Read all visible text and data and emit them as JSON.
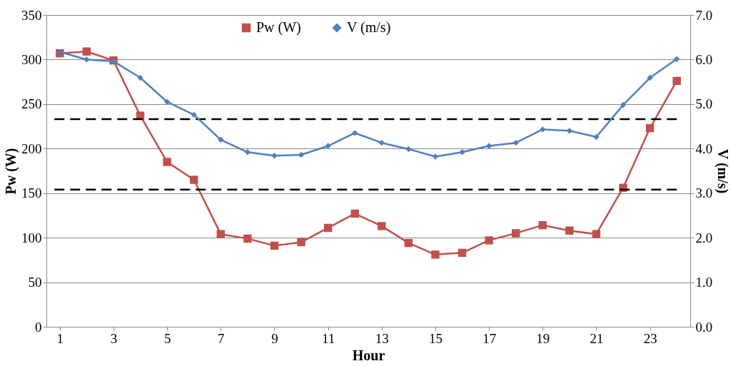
{
  "chart_data": {
    "type": "line",
    "xlabel": "Hour",
    "ylabel": "Pw (W)",
    "y2label": "V (m/s)",
    "x": [
      1,
      2,
      3,
      4,
      5,
      6,
      7,
      8,
      9,
      10,
      11,
      12,
      13,
      14,
      15,
      16,
      17,
      18,
      19,
      20,
      21,
      22,
      23,
      24
    ],
    "series": [
      {
        "name": "Pw (W)",
        "color": "#c0504d",
        "marker": "square",
        "values": [
          307,
          309,
          299,
          237,
          185,
          165,
          104,
          99,
          91,
          95,
          111,
          127,
          113,
          94,
          81,
          83,
          97,
          105,
          114,
          108,
          104,
          156,
          223,
          276
        ]
      },
      {
        "name": "V (m/s)",
        "color": "#4f81bd",
        "marker": "diamond",
        "axis": "y2",
        "values": [
          6.17,
          6.0,
          5.96,
          5.59,
          5.05,
          4.76,
          4.2,
          3.92,
          3.84,
          3.86,
          4.06,
          4.35,
          4.13,
          3.99,
          3.82,
          3.92,
          4.06,
          4.13,
          4.43,
          4.4,
          4.26,
          4.98,
          5.59,
          6.01
        ]
      }
    ],
    "xlim": [
      0.5,
      24.5
    ],
    "xticks": [
      1,
      3,
      5,
      7,
      9,
      11,
      13,
      15,
      17,
      19,
      21,
      23
    ],
    "ylim": [
      0,
      350
    ],
    "yticks": [
      0,
      50,
      100,
      150,
      200,
      250,
      300,
      350
    ],
    "y2lim": [
      0,
      7
    ],
    "y2ticks": [
      {
        "value": 0,
        "label": "0.0"
      },
      {
        "value": 1,
        "label": "1.0"
      },
      {
        "value": 2,
        "label": "2.0"
      },
      {
        "value": 3,
        "label": "3.0"
      },
      {
        "value": 4,
        "label": "4.0"
      },
      {
        "value": 5,
        "label": "5.0"
      },
      {
        "value": 6,
        "label": "6.0"
      },
      {
        "value": 7,
        "label": "7.0"
      }
    ],
    "ref_lines": [
      {
        "axis": "y",
        "value": 233,
        "color": "#000000",
        "line_style": "dashed"
      },
      {
        "axis": "y",
        "value": 154,
        "color": "#000000",
        "line_style": "dashed"
      }
    ],
    "grid": "y",
    "legend": "top",
    "line_style": "solid"
  }
}
